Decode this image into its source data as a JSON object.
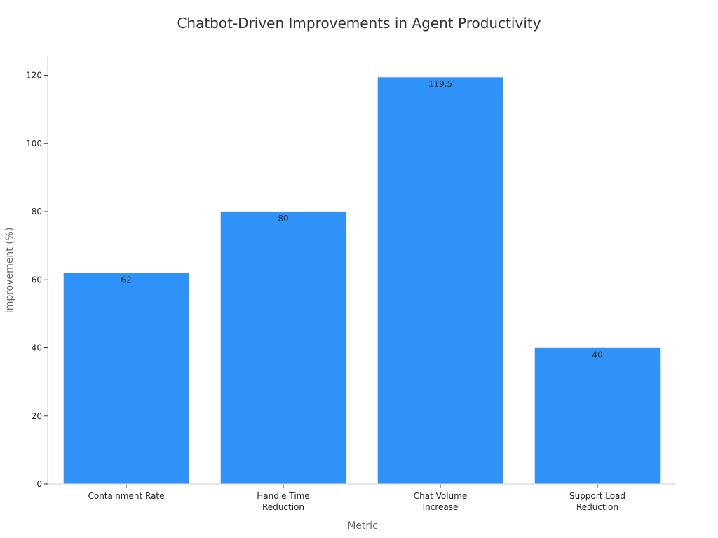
{
  "chart_data": {
    "type": "bar",
    "title": "Chatbot-Driven Improvements in Agent Productivity",
    "xlabel": "Metric",
    "ylabel": "Improvement (%)",
    "categories": [
      [
        "Containment Rate"
      ],
      [
        "Handle Time",
        "Reduction"
      ],
      [
        "Chat Volume",
        "Increase"
      ],
      [
        "Support Load",
        "Reduction"
      ]
    ],
    "values": [
      62,
      80,
      119.5,
      40
    ],
    "value_labels": [
      "62",
      "80",
      "119.5",
      "40"
    ],
    "ylim": [
      0,
      125
    ],
    "yticks": [
      0,
      20,
      40,
      60,
      80,
      100,
      120
    ],
    "grid": false,
    "bar_color": "#2f92f8",
    "bar_edge_color": "#e6e6e6"
  }
}
